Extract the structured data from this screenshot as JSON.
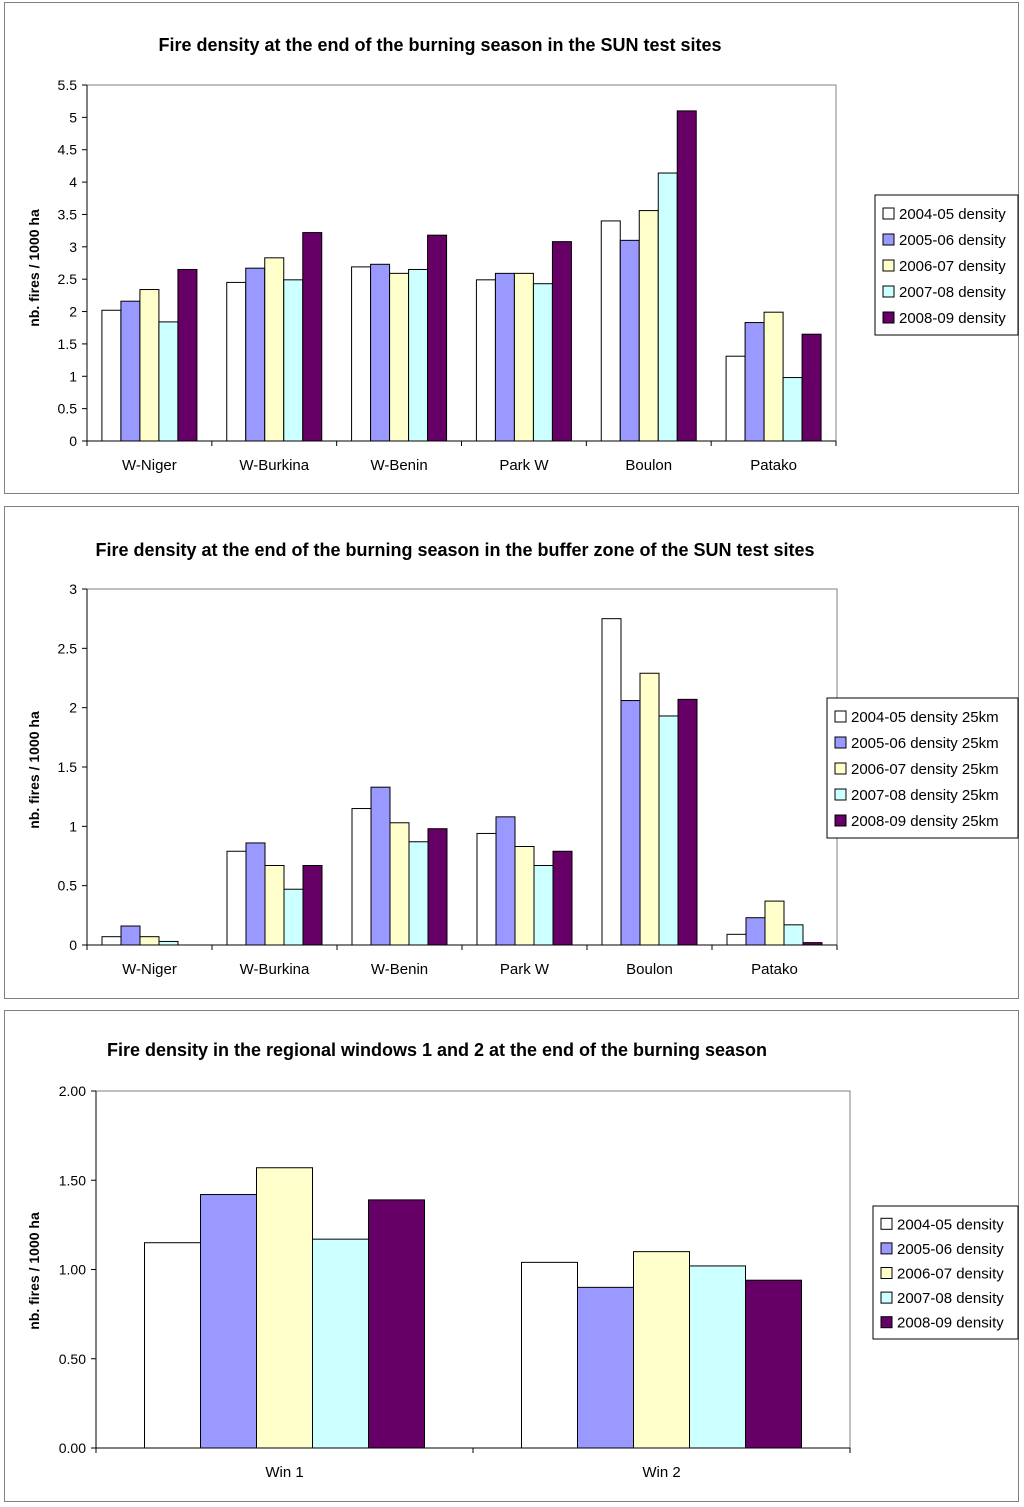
{
  "colors": {
    "s1": "#ffffff",
    "s2": "#9999ff",
    "s3": "#ffffcc",
    "s4": "#ccffff",
    "s5": "#660066",
    "axis": "#000000",
    "frame": "#808080"
  },
  "chart_data": [
    {
      "type": "bar",
      "title": "Fire density at the end of the burning season in the SUN test sites",
      "xlabel": "",
      "ylabel": "nb. fires / 1000 ha",
      "ylim": [
        0,
        5.5
      ],
      "yticks": [
        "0",
        "0.5",
        "1",
        "1.5",
        "2",
        "2.5",
        "3",
        "3.5",
        "4",
        "4.5",
        "5",
        "5.5"
      ],
      "grid": false,
      "legend_position": "right",
      "categories": [
        "W-Niger",
        "W-Burkina",
        "W-Benin",
        "Park W",
        "Boulon",
        "Patako"
      ],
      "series": [
        {
          "name": "2004-05 density",
          "values": [
            2.02,
            2.45,
            2.69,
            2.49,
            3.4,
            1.31
          ]
        },
        {
          "name": "2005-06 density",
          "values": [
            2.16,
            2.67,
            2.73,
            2.59,
            3.1,
            1.83
          ]
        },
        {
          "name": "2006-07 density",
          "values": [
            2.34,
            2.83,
            2.59,
            2.59,
            3.56,
            1.99
          ]
        },
        {
          "name": "2007-08 density",
          "values": [
            1.84,
            2.49,
            2.65,
            2.43,
            4.14,
            0.98
          ]
        },
        {
          "name": "2008-09 density",
          "values": [
            2.65,
            3.22,
            3.18,
            3.08,
            5.1,
            1.65
          ]
        }
      ]
    },
    {
      "type": "bar",
      "title": "Fire density at the end of the burning season in the buffer zone of the SUN test sites",
      "xlabel": "",
      "ylabel": "nb. fires / 1000 ha",
      "ylim": [
        0,
        3
      ],
      "yticks": [
        "0",
        "0.5",
        "1",
        "1.5",
        "2",
        "2.5",
        "3"
      ],
      "grid": false,
      "legend_position": "right",
      "categories": [
        "W-Niger",
        "W-Burkina",
        "W-Benin",
        "Park W",
        "Boulon",
        "Patako"
      ],
      "series": [
        {
          "name": "2004-05 density 25km",
          "values": [
            0.07,
            0.79,
            1.15,
            0.94,
            2.75,
            0.09
          ]
        },
        {
          "name": "2005-06 density 25km",
          "values": [
            0.16,
            0.86,
            1.33,
            1.08,
            2.06,
            0.23
          ]
        },
        {
          "name": "2006-07 density 25km",
          "values": [
            0.07,
            0.67,
            1.03,
            0.83,
            2.29,
            0.37
          ]
        },
        {
          "name": "2007-08 density 25km",
          "values": [
            0.03,
            0.47,
            0.87,
            0.67,
            1.93,
            0.17
          ]
        },
        {
          "name": "2008-09 density 25km",
          "values": [
            0.0,
            0.67,
            0.98,
            0.79,
            2.07,
            0.02
          ]
        }
      ]
    },
    {
      "type": "bar",
      "title": "Fire density in the regional windows 1 and 2 at the end of the burning season",
      "xlabel": "",
      "ylabel": "nb. fires / 1000 ha",
      "ylim": [
        0,
        2
      ],
      "yticks": [
        "0.00",
        "0.50",
        "1.00",
        "1.50",
        "2.00"
      ],
      "grid": false,
      "legend_position": "right",
      "categories": [
        "Win 1",
        "Win 2"
      ],
      "series": [
        {
          "name": "2004-05 density",
          "values": [
            1.15,
            1.04
          ]
        },
        {
          "name": "2005-06 density",
          "values": [
            1.42,
            0.9
          ]
        },
        {
          "name": "2006-07 density",
          "values": [
            1.57,
            1.1
          ]
        },
        {
          "name": "2007-08 density",
          "values": [
            1.17,
            1.02
          ]
        },
        {
          "name": "2008-09 density",
          "values": [
            1.39,
            0.94
          ]
        }
      ]
    }
  ]
}
